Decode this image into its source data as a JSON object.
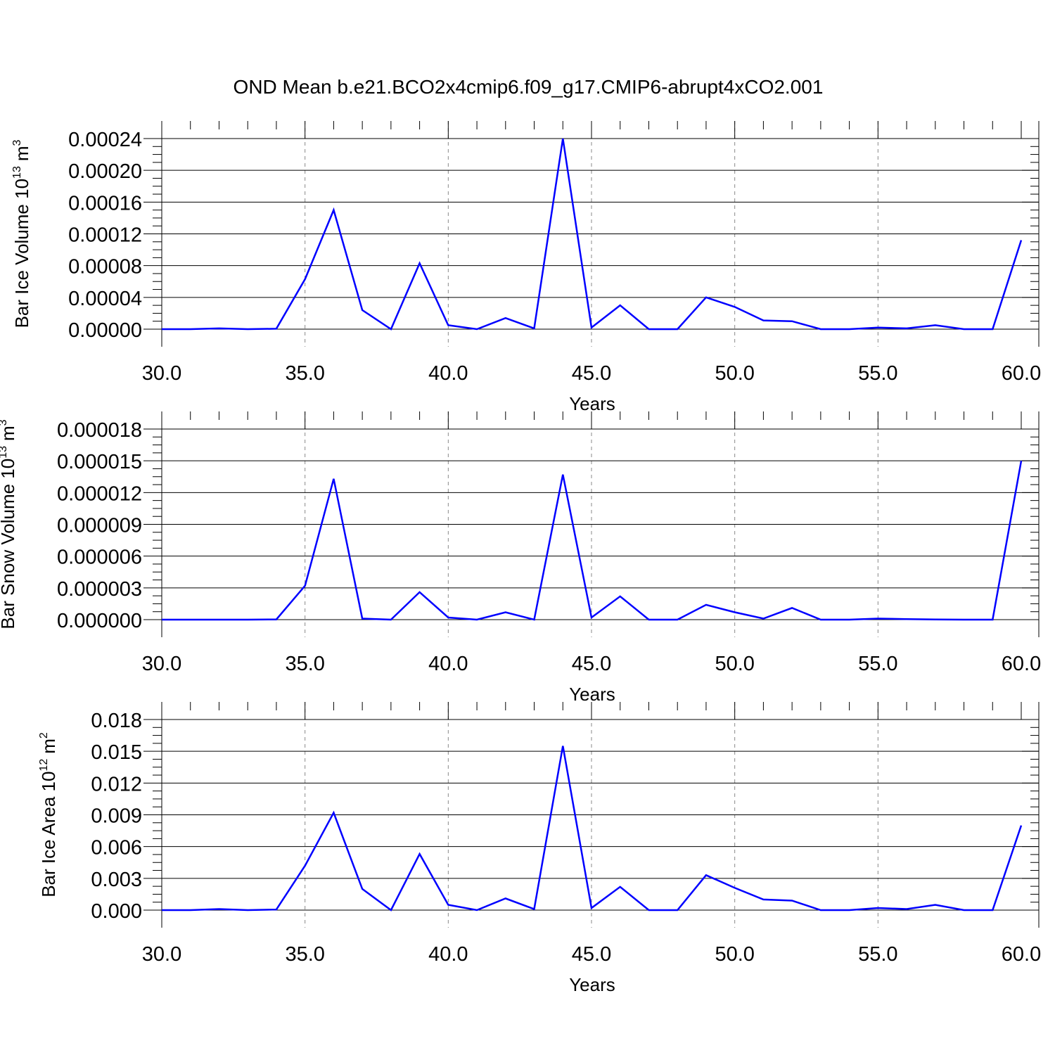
{
  "title": "OND Mean b.e21.BCO2x4cmip6.f09_g17.CMIP6-abrupt4xCO2.001",
  "line_color": "#0000ff",
  "chart_data": [
    {
      "type": "line",
      "xlabel": "Years",
      "ylabel": "Bar Ice Volume",
      "ylabel_unit": {
        "base": "10",
        "exp": "13",
        "unit": "m",
        "unit_exp": "3"
      },
      "xlim": [
        30,
        60
      ],
      "ylim": [
        0,
        0.00024
      ],
      "x_ticks": [
        "30.0",
        "35.0",
        "40.0",
        "45.0",
        "50.0",
        "55.0",
        "60.0"
      ],
      "y_ticks": [
        "0.00000",
        "0.00004",
        "0.00008",
        "0.00012",
        "0.00016",
        "0.00020",
        "0.00024"
      ],
      "x": [
        30,
        31,
        32,
        33,
        34,
        35,
        36,
        37,
        38,
        39,
        40,
        41,
        42,
        43,
        44,
        45,
        46,
        47,
        48,
        49,
        50,
        51,
        52,
        53,
        54,
        55,
        56,
        57,
        58,
        59,
        60
      ],
      "values": [
        0,
        0,
        1e-06,
        0,
        5e-07,
        6.3e-05,
        0.00015,
        2.4e-05,
        0,
        8.3e-05,
        5e-06,
        0,
        1.4e-05,
        1e-06,
        0.00024,
        2e-06,
        3e-05,
        0,
        0,
        4e-05,
        2.8e-05,
        1.1e-05,
        1e-05,
        0,
        0,
        2e-06,
        1e-06,
        5e-06,
        0,
        0,
        0.000112
      ]
    },
    {
      "type": "line",
      "xlabel": "Years",
      "ylabel": "Bar Snow Volume",
      "ylabel_unit": {
        "base": "10",
        "exp": "13",
        "unit": "m",
        "unit_exp": "3"
      },
      "xlim": [
        30,
        60
      ],
      "ylim": [
        0,
        1.8e-05
      ],
      "x_ticks": [
        "30.0",
        "35.0",
        "40.0",
        "45.0",
        "50.0",
        "55.0",
        "60.0"
      ],
      "y_ticks": [
        "0.000000",
        "0.000003",
        "0.000006",
        "0.000009",
        "0.000012",
        "0.000015",
        "0.000018"
      ],
      "x": [
        30,
        31,
        32,
        33,
        34,
        35,
        36,
        37,
        38,
        39,
        40,
        41,
        42,
        43,
        44,
        45,
        46,
        47,
        48,
        49,
        50,
        51,
        52,
        53,
        54,
        55,
        56,
        57,
        58,
        59,
        60
      ],
      "values": [
        0,
        0,
        0,
        0,
        2e-08,
        3.2e-06,
        1.33e-05,
        1e-07,
        0,
        2.6e-06,
        2e-07,
        0,
        7e-07,
        0,
        1.37e-05,
        2e-07,
        2.2e-06,
        0,
        0,
        1.4e-06,
        7e-07,
        1e-07,
        1.1e-06,
        0,
        0,
        1e-07,
        5e-08,
        2e-08,
        0,
        0,
        1.5e-05
      ]
    },
    {
      "type": "line",
      "xlabel": "Years",
      "ylabel": "Bar Ice Area",
      "ylabel_unit": {
        "base": "10",
        "exp": "12",
        "unit": "m",
        "unit_exp": "2"
      },
      "xlim": [
        30,
        60
      ],
      "ylim": [
        0,
        0.018
      ],
      "x_ticks": [
        "30.0",
        "35.0",
        "40.0",
        "45.0",
        "50.0",
        "55.0",
        "60.0"
      ],
      "y_ticks": [
        "0.000",
        "0.003",
        "0.006",
        "0.009",
        "0.012",
        "0.015",
        "0.018"
      ],
      "x": [
        30,
        31,
        32,
        33,
        34,
        35,
        36,
        37,
        38,
        39,
        40,
        41,
        42,
        43,
        44,
        45,
        46,
        47,
        48,
        49,
        50,
        51,
        52,
        53,
        54,
        55,
        56,
        57,
        58,
        59,
        60
      ],
      "values": [
        0,
        0,
        0.0001,
        0,
        5e-05,
        0.0042,
        0.0092,
        0.002,
        0,
        0.0053,
        0.0005,
        0,
        0.0011,
        0.0001,
        0.0155,
        0.0002,
        0.0022,
        0,
        0,
        0.0033,
        0.0021,
        0.001,
        0.0009,
        0,
        0,
        0.0002,
        0.0001,
        0.0005,
        0,
        0,
        0.008
      ]
    }
  ]
}
